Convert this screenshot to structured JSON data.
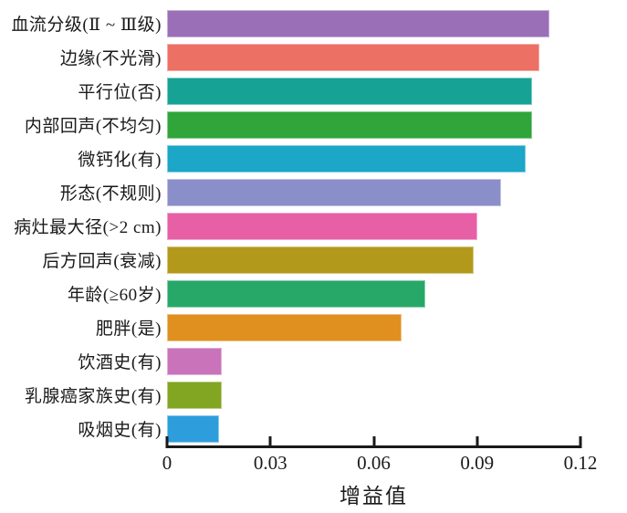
{
  "chart_data": {
    "type": "bar",
    "orientation": "horizontal",
    "title": "",
    "xlabel": "增益值",
    "ylabel": "",
    "xlim": [
      0,
      0.12
    ],
    "grid": false,
    "legend": false,
    "categories": [
      "血流分级(Ⅱ ~ Ⅲ级)",
      "边缘(不光滑)",
      "平行位(否)",
      "内部回声(不均匀)",
      "微钙化(有)",
      "形态(不规则)",
      "病灶最大径(>2 cm)",
      "后方回声(衰减)",
      "年龄(≥60岁)",
      "肥胖(是)",
      "饮酒史(有)",
      "乳腺癌家族史(有)",
      "吸烟史(有)"
    ],
    "values": [
      0.111,
      0.108,
      0.106,
      0.106,
      0.104,
      0.097,
      0.09,
      0.089,
      0.075,
      0.068,
      0.016,
      0.016,
      0.015
    ],
    "bar_colors": [
      "#9b6fb8",
      "#ec7063",
      "#16a395",
      "#2fa53a",
      "#1ca6c8",
      "#8a8fca",
      "#e75fa5",
      "#b2991c",
      "#27a869",
      "#e0901e",
      "#c973bb",
      "#82a522",
      "#2d9edb"
    ],
    "x_ticks": [
      0,
      0.03,
      0.06,
      0.09,
      0.12
    ],
    "x_tick_labels": [
      "0",
      "0.03",
      "0.06",
      "0.09",
      "0.12"
    ],
    "axis_color": "#1a1a1a"
  }
}
